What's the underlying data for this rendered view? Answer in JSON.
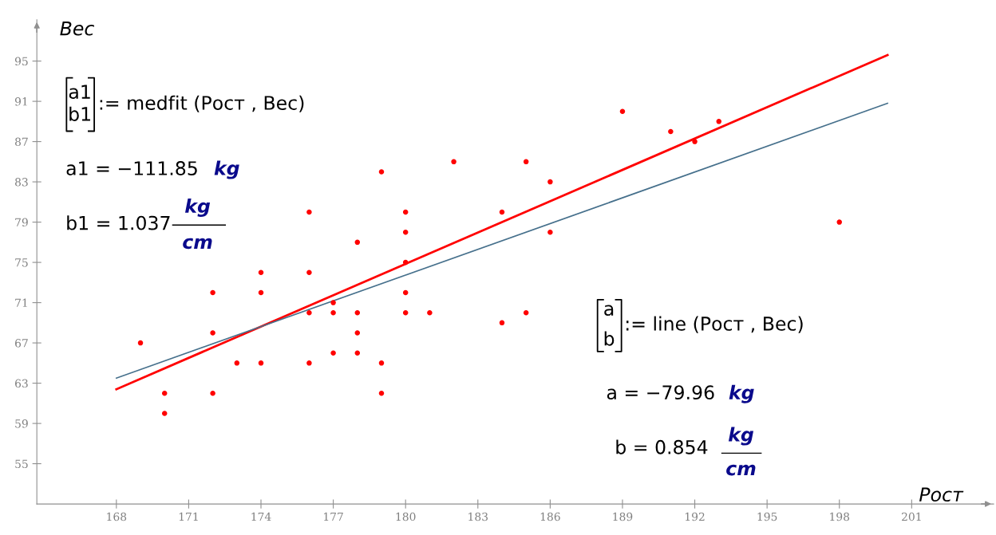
{
  "chart_data": {
    "type": "scatter",
    "xlabel": "Рост",
    "ylabel": "Вес",
    "xlim": [
      164.7,
      204.4
    ],
    "ylim": [
      51,
      99.1
    ],
    "xticks": [
      168,
      171,
      174,
      177,
      180,
      183,
      186,
      189,
      192,
      195,
      198,
      201
    ],
    "yticks": [
      55,
      59,
      63,
      67,
      71,
      75,
      79,
      83,
      87,
      91,
      95
    ],
    "grid": false,
    "series": [
      {
        "marker": "circle",
        "color": "#ff0000",
        "x": [
          169,
          170,
          170,
          172,
          172,
          172,
          173,
          174,
          174,
          174,
          176,
          176,
          176,
          176,
          177,
          177,
          177,
          178,
          178,
          178,
          178,
          179,
          179,
          179,
          180,
          180,
          180,
          180,
          180,
          181,
          182,
          184,
          184,
          185,
          185,
          186,
          186,
          189,
          191,
          192,
          193,
          198
        ],
        "values": [
          67,
          62,
          60,
          72,
          68,
          62,
          65,
          74,
          72,
          65,
          80,
          74,
          70,
          65,
          71,
          70,
          66,
          77,
          70,
          68,
          66,
          84,
          65,
          62,
          80,
          78,
          75,
          72,
          70,
          70,
          85,
          80,
          69,
          85,
          70,
          83,
          78,
          90,
          88,
          87,
          89,
          79
        ]
      },
      {
        "type": "line",
        "color": "#ff0000",
        "x": [
          168,
          200
        ],
        "values": [
          62.4,
          95.6
        ]
      },
      {
        "type": "line",
        "color": "#46708c",
        "x": [
          168,
          200
        ],
        "values": [
          63.5,
          90.8
        ]
      }
    ],
    "annotations": [
      "a1",
      "b1",
      ":= medfit (Рост , Вес)",
      "a1 = −111.85",
      "kg",
      "b1 = 1.037",
      "kg",
      "cm",
      "a",
      "b",
      ":= line (Рост , Вес)",
      "a = −79.96",
      "kg",
      "b = 0.854",
      "kg",
      "cm"
    ]
  }
}
